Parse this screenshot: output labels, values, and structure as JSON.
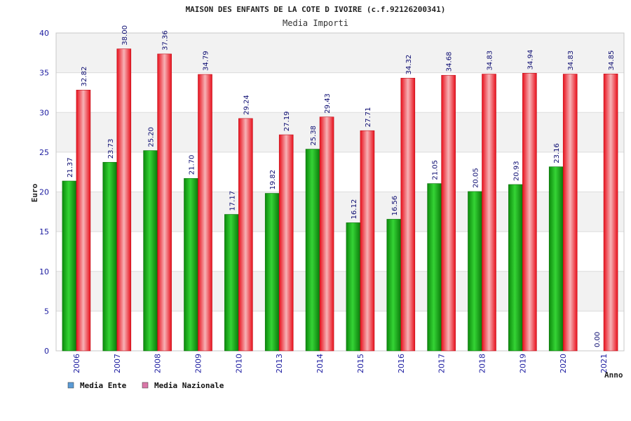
{
  "chart_data": {
    "type": "bar",
    "title": "MAISON DES ENFANTS DE LA COTE D IVOIRE (c.f.92126200341)",
    "subtitle": "Media Importi",
    "xlabel": "Anno",
    "ylabel": "Euro",
    "ylim": [
      0,
      40
    ],
    "yticks": [
      "0",
      "5",
      "10",
      "15",
      "20",
      "25",
      "30",
      "35",
      "40"
    ],
    "categories": [
      "2006",
      "2007",
      "2008",
      "2009",
      "2010",
      "2013",
      "2014",
      "2015",
      "2016",
      "2017",
      "2018",
      "2019",
      "2020",
      "2021"
    ],
    "series": [
      {
        "name": "Media Ente",
        "color": "#1fae1f",
        "legend_color": "#5b9bd5",
        "values": [
          21.37,
          23.73,
          25.2,
          21.7,
          17.17,
          19.82,
          25.38,
          16.12,
          16.56,
          21.05,
          20.05,
          20.93,
          23.16,
          0.0
        ],
        "labels": [
          "21.37",
          "23.73",
          "25.20",
          "21.70",
          "17.17",
          "19.82",
          "25.38",
          "16.12",
          "16.56",
          "21.05",
          "20.05",
          "20.93",
          "23.16",
          "0.00"
        ]
      },
      {
        "name": "Media Nazionale",
        "color": "#e8202a",
        "legend_color": "#d977a8",
        "values": [
          32.82,
          38.0,
          37.36,
          34.79,
          29.24,
          27.19,
          29.43,
          27.71,
          34.32,
          34.68,
          34.83,
          34.94,
          34.83,
          34.85
        ],
        "labels": [
          "32.82",
          "38.00",
          "37.36",
          "34.79",
          "29.24",
          "27.19",
          "29.43",
          "27.71",
          "34.32",
          "34.68",
          "34.83",
          "34.94",
          "34.83",
          "34.85"
        ]
      }
    ],
    "legend_position": "bottom-left",
    "grid": true
  }
}
